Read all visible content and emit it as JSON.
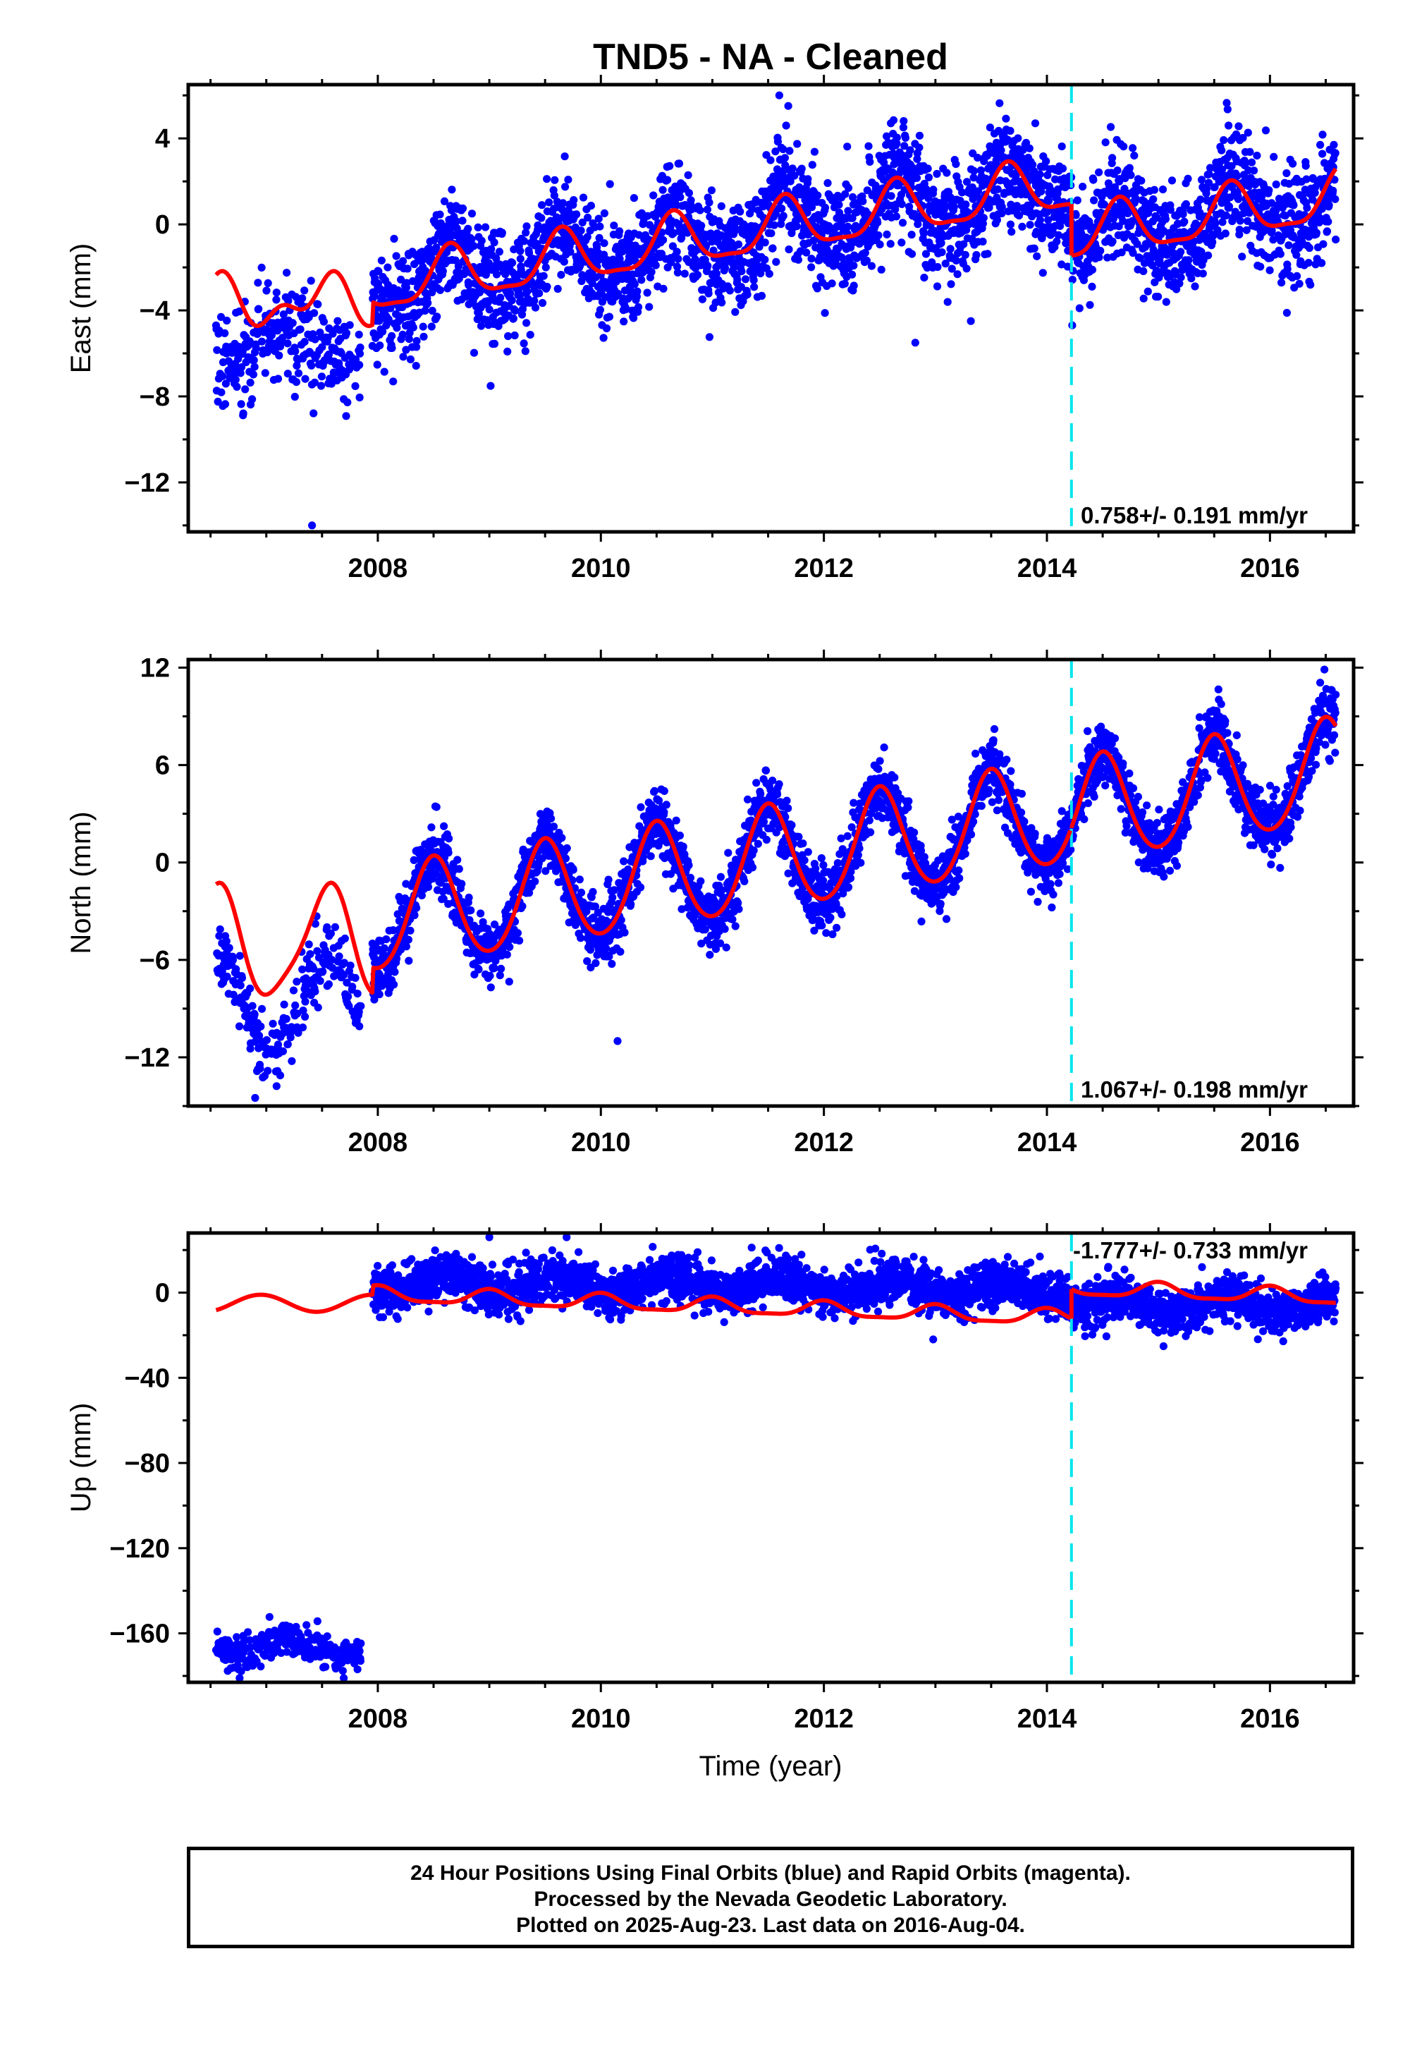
{
  "chart_data": {
    "type": "scatter",
    "title": "TND5  - NA - Cleaned",
    "xlabel": "Time (year)",
    "xlim": [
      2006.3,
      2016.75
    ],
    "x_ticks": [
      "2008",
      "2010",
      "2012",
      "2014",
      "2016"
    ],
    "x_tick_values": [
      2008,
      2010,
      2012,
      2014,
      2016
    ],
    "data_start": 2006.55,
    "data_gap": [
      2007.85,
      2007.95
    ],
    "data_end": 2016.59,
    "offset_epoch": 2014.22,
    "colors": {
      "data": "#0000ff",
      "model": "#ff0000",
      "offset_line": "#00e5ee",
      "frame": "#000000"
    },
    "panels": [
      {
        "ylabel": "East (mm)",
        "ylim": [
          -14.3,
          6.5
        ],
        "y_ticks": [
          "4",
          "0",
          "-4",
          "-8",
          "-12"
        ],
        "y_tick_values": [
          4,
          0,
          -4,
          -8,
          -12
        ],
        "rate_label": "0.758+/- 0.191 mm/yr",
        "rate_position": "bottom-right",
        "model": {
          "early_baseline": -3.6,
          "early_amplitude": 0.9,
          "baseline_at_2008": -2.9,
          "slope_mm_per_yr": 0.758,
          "annual_amplitude": 1.2,
          "annual_peak_phase": 0.65,
          "semiannual_amplitude": 0.35,
          "offset_after_epoch": -2.4,
          "scatter": 1.25
        },
        "outliers": [
          {
            "x": 2007.41,
            "y": -14.0
          },
          {
            "x": 2012.82,
            "y": -5.5
          },
          {
            "x": 2011.6,
            "y": 6.0
          }
        ]
      },
      {
        "ylabel": "North (mm)",
        "ylim": [
          -15.0,
          12.5
        ],
        "y_ticks": [
          "12",
          "6",
          "0",
          "-6",
          "-12"
        ],
        "y_tick_values": [
          12,
          6,
          0,
          -6,
          -12
        ],
        "rate_label": "1.067+/- 0.198 mm/yr",
        "rate_position": "bottom-right",
        "model": {
          "early_baseline": -5.0,
          "early_amplitude": 3.3,
          "baseline_at_2008": -3.6,
          "slope_mm_per_yr": 1.067,
          "annual_amplitude": 3.2,
          "annual_peak_phase": 0.5,
          "semiannual_amplitude": 0.3,
          "offset_after_epoch": 0.0,
          "scatter": 1.0
        },
        "outliers": [
          {
            "x": 2010.15,
            "y": -11.0
          },
          {
            "x": 2006.9,
            "y": -14.5
          }
        ]
      },
      {
        "ylabel": "Up (mm)",
        "ylim": [
          -183,
          28
        ],
        "y_ticks": [
          "0",
          "-40",
          "-80",
          "-120",
          "-160"
        ],
        "y_tick_values": [
          0,
          -40,
          -80,
          -120,
          -160
        ],
        "rate_label": "-1.777+/- 0.733 mm/yr",
        "rate_position": "top-right",
        "model": {
          "early_model_baseline": -5.0,
          "early_model_amplitude": 4.0,
          "early_data_level": -166,
          "early_data_scatter": 6.0,
          "baseline_at_2008": -1.0,
          "slope_mm_per_yr": -1.777,
          "annual_amplitude": 3.5,
          "annual_peak_phase": 0.0,
          "semiannual_amplitude": 1.0,
          "offset_after_epoch": 14.0,
          "data_level_before": 5.0,
          "data_level_after": -6.0,
          "scatter": 6.5
        },
        "outliers": [
          {
            "x": 2012.98,
            "y": -22.0
          },
          {
            "x": 2009.0,
            "y": 26.0
          }
        ]
      }
    ]
  },
  "footer": {
    "line1": "24 Hour Positions Using Final Orbits (blue) and Rapid Orbits (magenta).",
    "line2": "Processed by the Nevada Geodetic Laboratory.",
    "line3": "Plotted on 2025-Aug-23. Last data on 2016-Aug-04."
  }
}
